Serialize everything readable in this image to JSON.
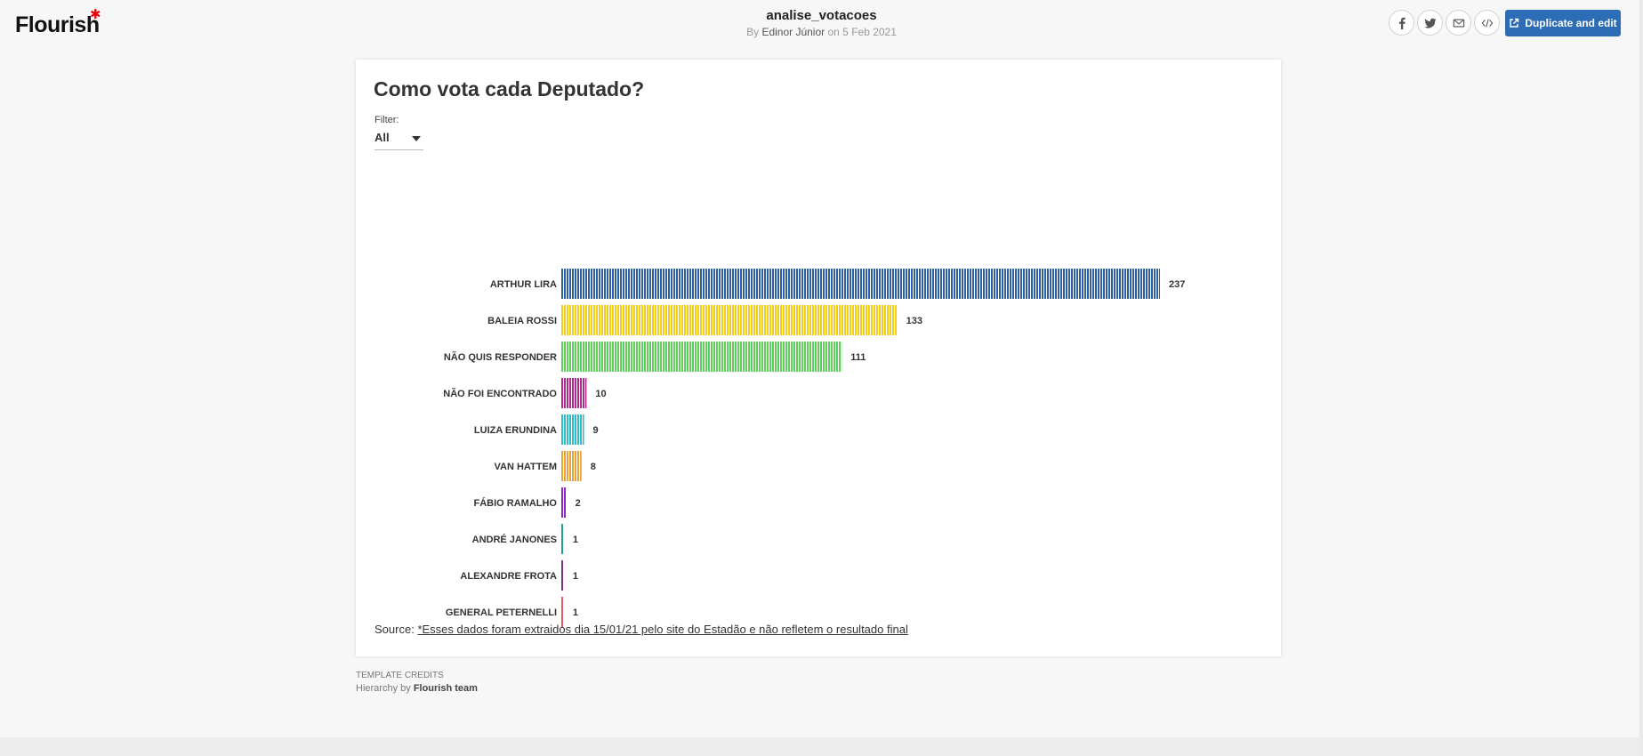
{
  "header": {
    "logo_text": "Flourish",
    "logo_star": "✱",
    "viz_title": "analise_votacoes",
    "by_prefix": "By",
    "author": "Edinor Júnior",
    "date_text": "on 5 Feb 2021",
    "share_icons": [
      "facebook-icon",
      "twitter-icon",
      "email-icon",
      "embed-icon"
    ],
    "duplicate_label": "Duplicate and edit",
    "accent_color": "#2d6db5"
  },
  "chart": {
    "title": "Como vota cada Deputado?",
    "filter": {
      "label": "Filter:",
      "selected": "All"
    }
  },
  "chart_data": {
    "type": "bar",
    "orientation": "horizontal",
    "categories": [
      "ARTHUR LIRA",
      "BALEIA ROSSI",
      "NÃO QUIS RESPONDER",
      "NÃO FOI ENCONTRADO",
      "LUIZA ERUNDINA",
      "VAN HATTEM",
      "FÁBIO RAMALHO",
      "ANDRÉ JANONES",
      "ALEXANDRE FROTA",
      "GENERAL PETERNELLI"
    ],
    "values": [
      237,
      133,
      111,
      10,
      9,
      8,
      2,
      1,
      1,
      1
    ],
    "colors": [
      "#2e5fa3",
      "#f2cf1b",
      "#61cf5b",
      "#b1288e",
      "#2fbcc6",
      "#e8a33a",
      "#8a2bbd",
      "#1fa38a",
      "#7d3085",
      "#e8575a"
    ],
    "title": "Como vota cada Deputado?",
    "xlabel": "",
    "ylabel": "",
    "xlim": [
      0,
      237
    ]
  },
  "source": {
    "prefix": "Source:",
    "link_text": "*Esses dados foram extraidos dia 15/01/21 pelo site do Estadão e não refletem o resultado final"
  },
  "credits": {
    "heading": "TEMPLATE CREDITS",
    "line_prefix": "Hierarchy by",
    "team": "Flourish team"
  }
}
